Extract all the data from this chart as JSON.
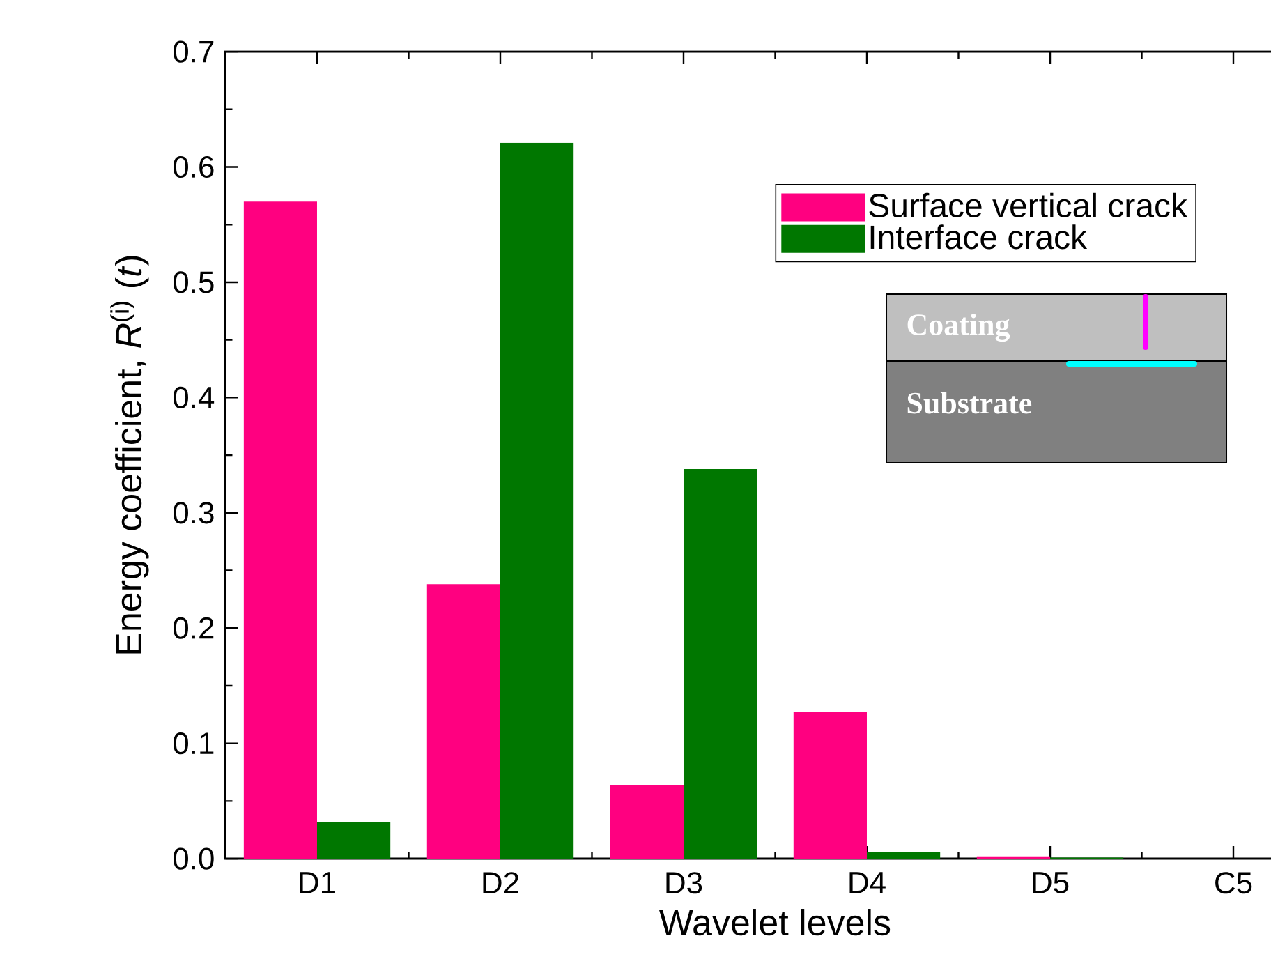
{
  "chart_data": {
    "type": "bar",
    "xlabel": "Wavelet levels",
    "ylabel": "Energy coefficient, *R*$^{(i)}$ (*t*)",
    "categories": [
      "D1",
      "D2",
      "D3",
      "D4",
      "D5",
      "C5"
    ],
    "series": [
      {
        "name": "Surface vertical crack",
        "color": "#ff0080",
        "values": [
          0.57,
          0.238,
          0.064,
          0.127,
          0.002,
          0
        ]
      },
      {
        "name": "Interface crack",
        "color": "#007700",
        "values": [
          0.032,
          0.621,
          0.338,
          0.006,
          0.001,
          0
        ]
      }
    ],
    "ylim": [
      0,
      0.7
    ],
    "yticks": [
      {
        "value": 0,
        "label": "0.0"
      },
      0.1,
      0.2,
      0.3,
      0.4,
      0.5,
      0.6,
      0.7
    ],
    "legend": "top right",
    "annotations": [
      "Coating",
      "Substrate"
    ]
  }
}
